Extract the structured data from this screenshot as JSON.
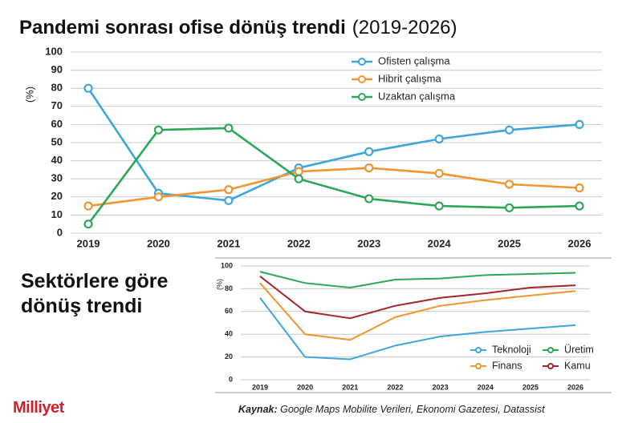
{
  "chart_data": [
    {
      "type": "line",
      "title": "Pandemi sonrası ofise dönüş trendi",
      "subtitle": "(2019-2026)",
      "ylabel": "(%)",
      "categories": [
        "2019",
        "2020",
        "2021",
        "2022",
        "2023",
        "2024",
        "2025",
        "2026"
      ],
      "series": [
        {
          "name": "Ofisten çalışma",
          "color": "#3ea6db",
          "values": [
            80,
            22,
            18,
            36,
            45,
            52,
            57,
            60
          ]
        },
        {
          "name": "Hibrit çalışma",
          "color": "#f0952f",
          "values": [
            15,
            20,
            24,
            34,
            36,
            33,
            27,
            25
          ]
        },
        {
          "name": "Uzaktan çalışma",
          "color": "#2ea65a",
          "values": [
            5,
            57,
            58,
            30,
            19,
            15,
            14,
            15
          ]
        }
      ],
      "ylim": [
        0,
        100
      ],
      "yticks": [
        0,
        10,
        20,
        30,
        40,
        50,
        60,
        70,
        80,
        90,
        100
      ],
      "grid": true,
      "markers": true,
      "legend": "upper right"
    },
    {
      "type": "line",
      "title": "Sektörlere göre dönüş trendi",
      "ylabel": "(%)",
      "categories": [
        "2019",
        "2020",
        "2021",
        "2022",
        "2023",
        "2024",
        "2025",
        "2026"
      ],
      "series": [
        {
          "name": "Teknoloji",
          "color": "#3ea6db",
          "values": [
            72,
            20,
            18,
            30,
            38,
            42,
            45,
            48
          ]
        },
        {
          "name": "Üretim",
          "color": "#2ea65a",
          "values": [
            95,
            85,
            81,
            88,
            89,
            92,
            93,
            94
          ]
        },
        {
          "name": "Finans",
          "color": "#f0952f",
          "values": [
            85,
            40,
            35,
            55,
            65,
            70,
            74,
            78
          ]
        },
        {
          "name": "Kamu",
          "color": "#a3262c",
          "values": [
            91,
            60,
            54,
            65,
            72,
            76,
            81,
            83
          ]
        }
      ],
      "ylim": [
        0,
        100
      ],
      "yticks": [
        0,
        20,
        40,
        60,
        80,
        100
      ],
      "grid": true,
      "markers": false,
      "legend": "lower right"
    }
  ],
  "brand": "Milliyet",
  "source_label": "Kaynak:",
  "source": "Google Maps Mobilite Verileri, Ekonomi Gazetesi, Datassist"
}
